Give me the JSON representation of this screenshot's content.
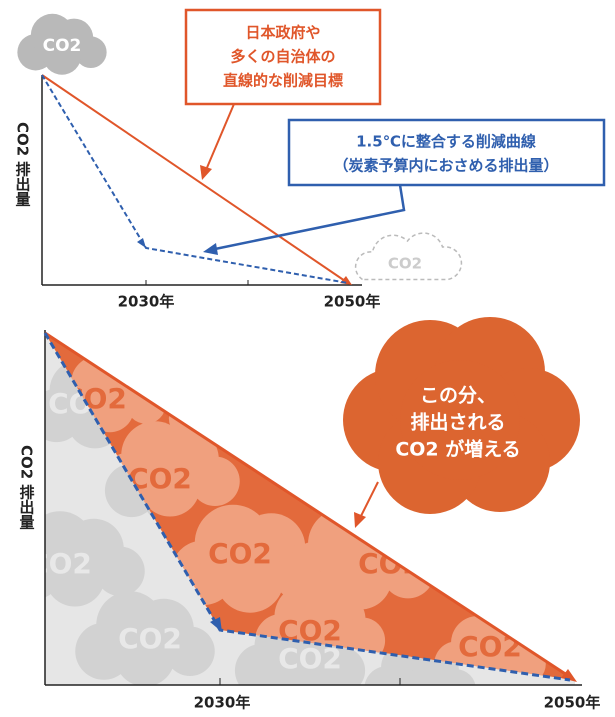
{
  "top": {
    "cloud_label": "CO2",
    "straight_callout": [
      "日本政府や",
      "多くの自治体の",
      "直線的な削減目標"
    ],
    "curve_callout": [
      "1.5℃に整合する削減曲線",
      "（炭素予算内におさめる排出量）"
    ],
    "y_label": "CO2 排出量",
    "x_labels": [
      "2030年",
      "2050年"
    ],
    "end_cloud_label": "CO2"
  },
  "bottom": {
    "y_label": "CO2 排出量",
    "callout": [
      "この分、",
      "排出される",
      "CO2 が増える"
    ],
    "x_labels": [
      "2030年",
      "2050年"
    ],
    "cloud_label": "CO2"
  }
}
